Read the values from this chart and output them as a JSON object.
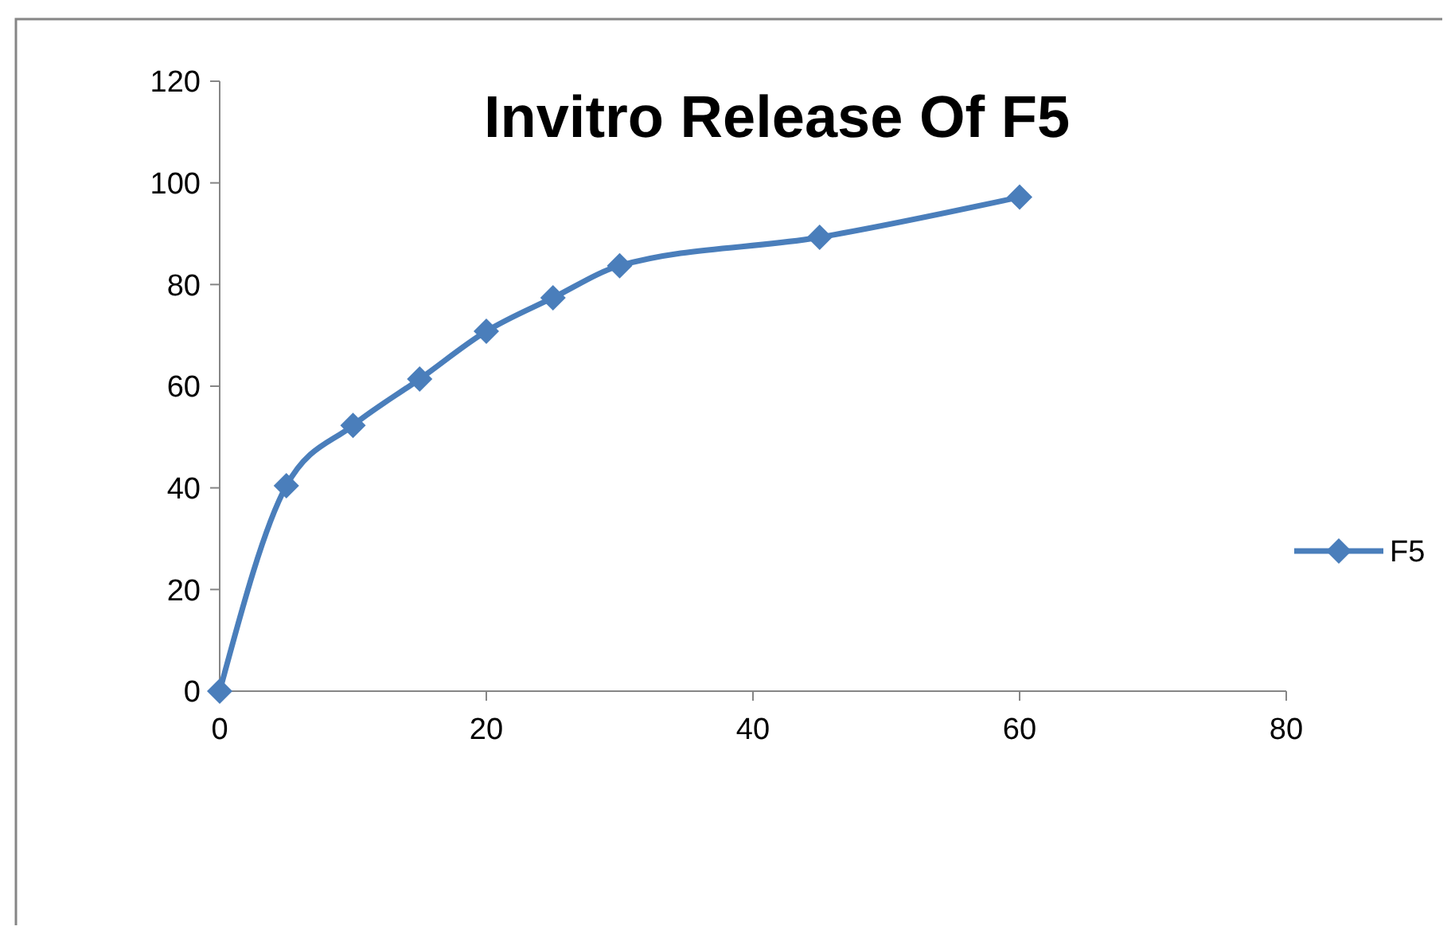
{
  "chart_data": {
    "type": "line",
    "title": "Invitro Release Of F5",
    "x": [
      0,
      5,
      10,
      15,
      20,
      25,
      30,
      45,
      60
    ],
    "series": [
      {
        "name": "F5",
        "color": "#4a7ebb",
        "values": [
          0,
          40.4,
          52.3,
          61.4,
          70.8,
          77.4,
          83.7,
          89.3,
          97.2
        ]
      }
    ],
    "xlim": [
      0,
      80
    ],
    "xticks": [
      0,
      20,
      40,
      60,
      80
    ],
    "ylim": [
      0,
      120
    ],
    "yticks": [
      0,
      20,
      40,
      60,
      80,
      100,
      120
    ],
    "grid": false,
    "legend": "right",
    "marker": "diamond",
    "line_style": "solid"
  }
}
